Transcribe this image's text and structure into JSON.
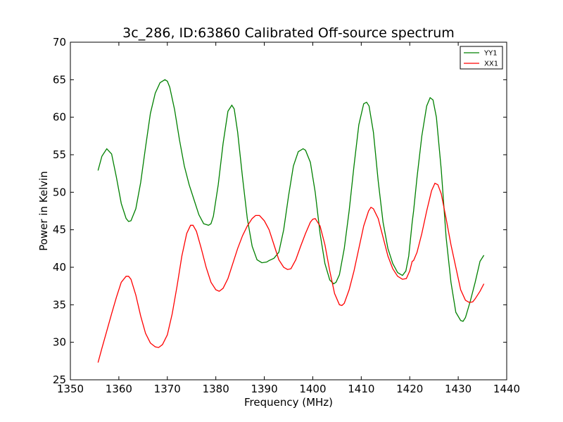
{
  "chart_data": {
    "type": "line",
    "title": "3c_286, ID:63860 Calibrated Off-source spectrum",
    "xlabel": "Frequency (MHz)",
    "ylabel": "Power in Kelvin",
    "xlim": [
      1350,
      1440
    ],
    "ylim": [
      25,
      70
    ],
    "xticks": [
      1350,
      1360,
      1370,
      1380,
      1390,
      1400,
      1410,
      1420,
      1430,
      1440
    ],
    "yticks": [
      25,
      30,
      35,
      40,
      45,
      50,
      55,
      60,
      65,
      70
    ],
    "grid": false,
    "legend_position": "top-right",
    "series": [
      {
        "name": "YY1",
        "color": "#008000",
        "x": [
          1355.7,
          1356.5,
          1357.5,
          1358.5,
          1359.5,
          1360.5,
          1361.5,
          1362.0,
          1362.5,
          1363.5,
          1364.5,
          1365.5,
          1366.5,
          1367.5,
          1368.5,
          1369.5,
          1370.0,
          1370.5,
          1371.5,
          1372.5,
          1373.5,
          1374.5,
          1375.5,
          1376.5,
          1377.5,
          1378.5,
          1379.0,
          1379.5,
          1380.5,
          1381.5,
          1382.5,
          1383.3,
          1383.8,
          1384.5,
          1385.5,
          1386.5,
          1387.5,
          1388.5,
          1389.5,
          1390.5,
          1391.0,
          1392.0,
          1393.0,
          1394.0,
          1395.0,
          1396.0,
          1397.0,
          1398.0,
          1398.5,
          1399.5,
          1400.5,
          1401.5,
          1402.5,
          1403.5,
          1404.3,
          1404.8,
          1405.5,
          1406.5,
          1407.5,
          1408.5,
          1409.5,
          1410.5,
          1411.1,
          1411.6,
          1412.5,
          1413.5,
          1414.5,
          1415.5,
          1416.5,
          1417.5,
          1418.5,
          1419.2,
          1419.8,
          1420.5,
          1420.8,
          1421.5,
          1422.5,
          1423.5,
          1424.2,
          1424.8,
          1425.5,
          1426.5,
          1427.5,
          1428.5,
          1429.5,
          1430.5,
          1431.0,
          1431.5,
          1432.5,
          1433.5,
          1434.5,
          1435.3
        ],
        "y": [
          52.9,
          54.8,
          55.8,
          55.1,
          52.0,
          48.5,
          46.5,
          46.1,
          46.2,
          47.8,
          51.3,
          56.0,
          60.5,
          63.2,
          64.6,
          65.0,
          64.8,
          64.0,
          61.0,
          57.0,
          53.5,
          51.0,
          49.0,
          47.0,
          45.8,
          45.6,
          45.8,
          46.8,
          51.0,
          56.5,
          60.8,
          61.6,
          61.1,
          58.0,
          52.0,
          46.5,
          42.8,
          41.0,
          40.6,
          40.7,
          40.9,
          41.2,
          42.0,
          45.0,
          49.5,
          53.5,
          55.4,
          55.8,
          55.6,
          54.0,
          50.0,
          44.5,
          40.5,
          38.3,
          37.8,
          38.0,
          39.0,
          42.5,
          47.5,
          53.5,
          59.0,
          61.8,
          62.0,
          61.5,
          58.0,
          51.5,
          46.0,
          42.5,
          40.5,
          39.3,
          38.9,
          39.5,
          41.5,
          46.0,
          47.5,
          52.0,
          57.5,
          61.5,
          62.6,
          62.3,
          60.0,
          53.0,
          44.0,
          38.0,
          34.0,
          32.9,
          32.8,
          33.3,
          35.5,
          38.0,
          40.8,
          41.6
        ]
      },
      {
        "name": "XX1",
        "color": "#ff0000",
        "x": [
          1355.7,
          1356.5,
          1357.5,
          1358.5,
          1359.5,
          1360.5,
          1361.5,
          1362.0,
          1362.5,
          1363.5,
          1364.5,
          1365.5,
          1366.5,
          1367.5,
          1368.2,
          1369.0,
          1370.0,
          1371.0,
          1372.0,
          1373.0,
          1374.0,
          1374.8,
          1375.3,
          1376.0,
          1377.0,
          1378.0,
          1379.0,
          1380.0,
          1380.7,
          1381.5,
          1382.5,
          1383.5,
          1384.5,
          1385.5,
          1386.5,
          1387.5,
          1388.2,
          1389.0,
          1390.0,
          1391.0,
          1392.0,
          1393.0,
          1394.0,
          1394.8,
          1395.5,
          1396.5,
          1397.5,
          1398.5,
          1399.5,
          1400.0,
          1400.5,
          1401.5,
          1402.5,
          1403.5,
          1404.5,
          1405.5,
          1406.0,
          1406.5,
          1407.5,
          1408.5,
          1409.5,
          1410.5,
          1411.5,
          1412.0,
          1412.5,
          1413.5,
          1414.5,
          1415.5,
          1416.5,
          1417.5,
          1418.5,
          1419.3,
          1420.0,
          1420.5,
          1420.8,
          1421.5,
          1422.5,
          1423.5,
          1424.5,
          1425.2,
          1425.8,
          1426.5,
          1427.5,
          1428.5,
          1429.5,
          1430.5,
          1431.5,
          1432.3,
          1433.0,
          1433.5,
          1434.5,
          1435.3
        ],
        "y": [
          27.3,
          29.2,
          31.5,
          33.8,
          36.0,
          38.0,
          38.8,
          38.8,
          38.4,
          36.3,
          33.5,
          31.2,
          29.9,
          29.4,
          29.3,
          29.7,
          31.0,
          33.8,
          37.5,
          41.5,
          44.5,
          45.6,
          45.6,
          44.8,
          42.5,
          40.0,
          38.0,
          37.0,
          36.8,
          37.2,
          38.5,
          40.5,
          42.5,
          44.2,
          45.5,
          46.5,
          46.9,
          46.9,
          46.2,
          45.0,
          43.0,
          41.0,
          40.0,
          39.7,
          39.8,
          41.0,
          42.8,
          44.5,
          46.0,
          46.4,
          46.5,
          45.5,
          43.0,
          39.5,
          36.5,
          35.0,
          34.9,
          35.2,
          37.0,
          39.5,
          42.5,
          45.5,
          47.5,
          48.0,
          47.8,
          46.5,
          44.0,
          41.5,
          39.8,
          38.8,
          38.4,
          38.5,
          39.5,
          40.8,
          40.9,
          42.0,
          44.5,
          47.5,
          50.2,
          51.2,
          51.0,
          49.8,
          46.5,
          43.0,
          40.0,
          37.0,
          35.6,
          35.3,
          35.4,
          35.8,
          36.8,
          37.8
        ]
      }
    ]
  }
}
